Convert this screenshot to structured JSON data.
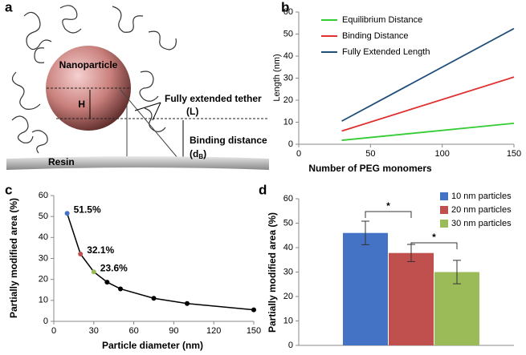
{
  "diagram": {
    "panel_label": "a",
    "nanoparticle": "Nanoparticle",
    "height": "H",
    "tether": "Fully extended tether",
    "tether_symbol": "(L)",
    "binding": "Binding distance",
    "binding_symbol": "(d",
    "binding_subscript": "B",
    "binding_close": ")",
    "resin": "Resin"
  },
  "chart_data": [
    {
      "type": "line",
      "panel_label": "b",
      "x": [
        30,
        150
      ],
      "series": [
        {
          "name": "Equilibrium Distance",
          "color": "#33cc33",
          "values": [
            1.8,
            9.5
          ]
        },
        {
          "name": "Binding Distance",
          "color": "#e03030",
          "values": [
            6,
            30.5
          ]
        },
        {
          "name": "Fully Extended Length",
          "color": "#1f4e79",
          "values": [
            10.5,
            52.5
          ]
        }
      ],
      "xlim": [
        0,
        150
      ],
      "xticks": [
        0,
        50,
        100,
        150
      ],
      "ylim": [
        0,
        60
      ],
      "yticks": [
        0,
        10,
        20,
        30,
        40,
        50,
        60
      ],
      "xlabel": "Number of PEG monomers",
      "ylabel": "Length (nm)",
      "legend": "upper left"
    },
    {
      "type": "line",
      "panel_label": "c",
      "x": [
        10,
        20,
        30,
        40,
        50,
        75,
        100,
        150
      ],
      "values": [
        51.5,
        32.1,
        23.6,
        18.7,
        15.5,
        11,
        8.5,
        5.5
      ],
      "value_labels": [
        "51.5%",
        "32.1%",
        "23.6%",
        null,
        null,
        null,
        null,
        null
      ],
      "color": "#000000",
      "point_colors": [
        "#4472c4",
        "#c0504d",
        "#9bbb59",
        "#000000",
        "#000000",
        "#000000",
        "#000000",
        "#000000"
      ],
      "xlim": [
        0,
        150
      ],
      "xticks": [
        0,
        30,
        60,
        90,
        120,
        150
      ],
      "ylim": [
        0,
        60
      ],
      "yticks": [
        0,
        10,
        20,
        30,
        40,
        50,
        60
      ],
      "xlabel": "Particle diameter (nm)",
      "ylabel": "Partially modified area (%)"
    },
    {
      "type": "bar",
      "panel_label": "d",
      "categories": [
        null
      ],
      "series": [
        {
          "name": "10 nm particles",
          "color": "#4472c4",
          "values": [
            46
          ],
          "errors": [
            4.8
          ]
        },
        {
          "name": "20 nm particles",
          "color": "#c0504d",
          "values": [
            37.8
          ],
          "errors": [
            3.5
          ]
        },
        {
          "name": "30 nm particles",
          "color": "#9bbb59",
          "values": [
            30
          ],
          "errors": [
            4.8
          ]
        }
      ],
      "ylim": [
        0,
        60
      ],
      "yticks": [
        0,
        10,
        20,
        30,
        40,
        50,
        60
      ],
      "ylabel": "Partially modified area (%)",
      "annotations": [
        "*",
        "*"
      ],
      "legend": "upper right"
    }
  ]
}
